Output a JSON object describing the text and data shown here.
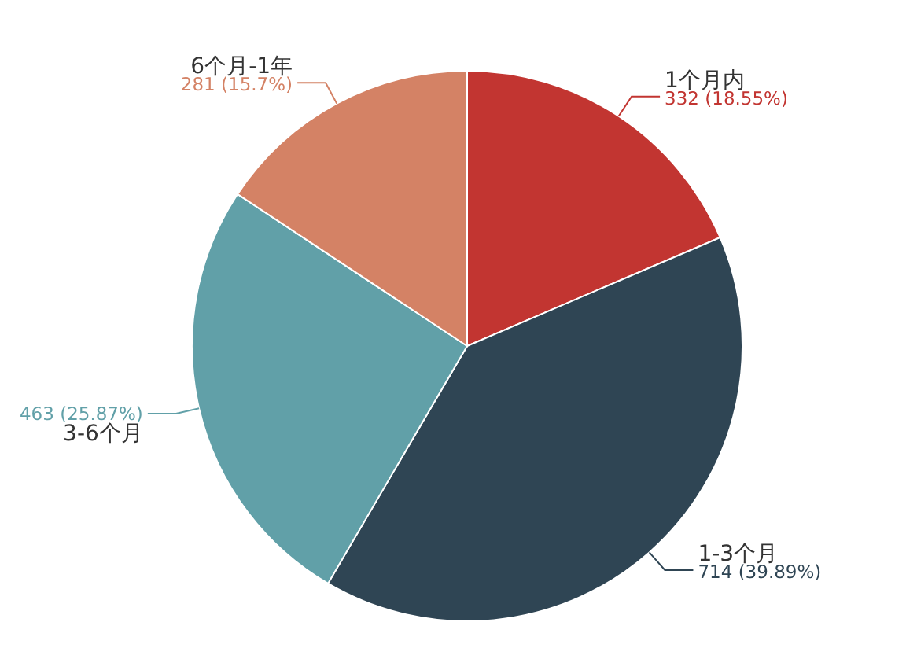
{
  "chart_data": {
    "type": "pie",
    "categories": [
      "1个月内",
      "1-3个月",
      "3-6个月",
      "6个月-1年"
    ],
    "values": [
      332,
      714,
      463,
      281
    ],
    "value_labels": [
      "332 (18.55%)",
      "714 (39.89%)",
      "463 (25.87%)",
      "281 (15.7%)"
    ],
    "colors": [
      "#c23531",
      "#2f4554",
      "#61a0a8",
      "#d48265"
    ]
  }
}
